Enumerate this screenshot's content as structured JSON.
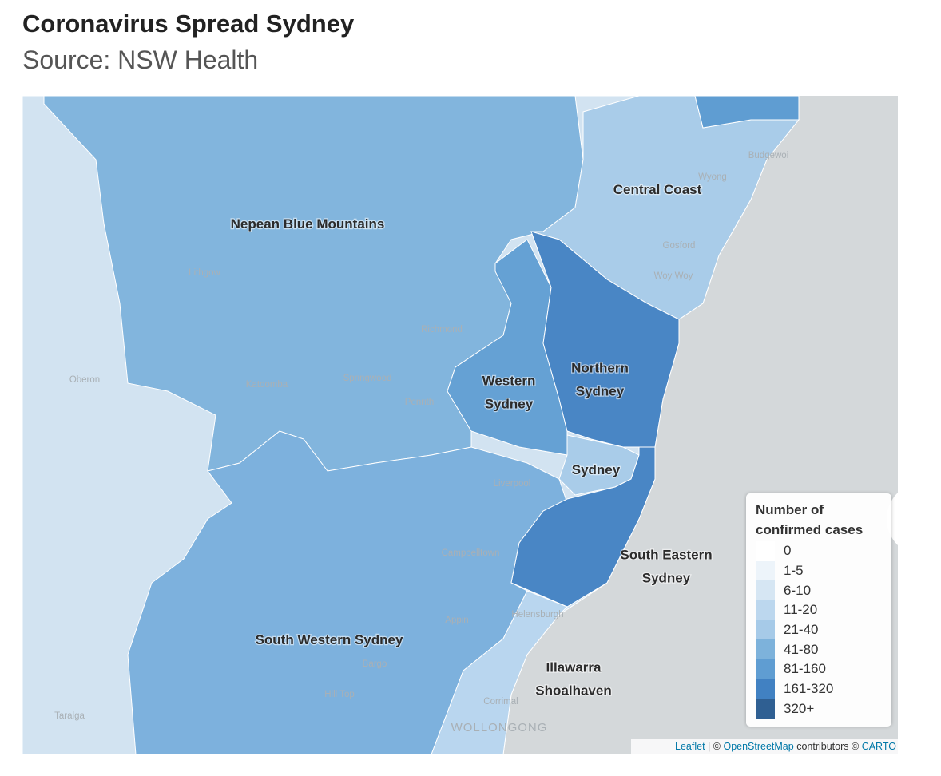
{
  "header": {
    "title": "Coronavirus Spread Sydney",
    "source": "Source: NSW Health"
  },
  "regions": [
    {
      "name": "Nepean Blue Mountains",
      "color": "#7db2db"
    },
    {
      "name": "South Western Sydney",
      "color": "#78aedb"
    },
    {
      "name": "Central Coast",
      "color": "#a6cae8"
    },
    {
      "name": "Western Sydney",
      "color": "#5f9dd2"
    },
    {
      "name": "Northern Sydney",
      "color": "#4181c2"
    },
    {
      "name": "Sydney",
      "color": "#a6cae8"
    },
    {
      "name": "South Eastern Sydney",
      "color": "#4181c2"
    },
    {
      "name": "Illawarra Shoalhaven",
      "color": "#b7d5ee"
    }
  ],
  "towns": [
    "Budgewoi",
    "Wyong",
    "Gosford",
    "Woy Woy",
    "Lithgow",
    "Richmond",
    "Oberon",
    "Katoomba",
    "Springwood",
    "Penrith",
    "Liverpool",
    "Campbelltown",
    "Appin",
    "Helensburgh",
    "Bargo",
    "Hill Top",
    "Taralga",
    "Corrimal",
    "WOLLONGONG"
  ],
  "legend": {
    "title": "Number of confirmed cases",
    "items": [
      {
        "label": "0",
        "color": "#ffffff"
      },
      {
        "label": "1-5",
        "color": "#edf4fa"
      },
      {
        "label": "6-10",
        "color": "#d6e6f3"
      },
      {
        "label": "11-20",
        "color": "#bcd7ee"
      },
      {
        "label": "21-40",
        "color": "#a6cae8"
      },
      {
        "label": "41-80",
        "color": "#7db2db"
      },
      {
        "label": "81-160",
        "color": "#5f9dd2"
      },
      {
        "label": "161-320",
        "color": "#4181c2"
      },
      {
        "label": "320+",
        "color": "#2f5f92"
      }
    ]
  },
  "attribution": {
    "leaflet": "Leaflet",
    "separator": "|",
    "osm_prefix": "©",
    "osm": "OpenStreetMap",
    "carto_prefix": "contributors ©",
    "carto": "CARTO"
  }
}
